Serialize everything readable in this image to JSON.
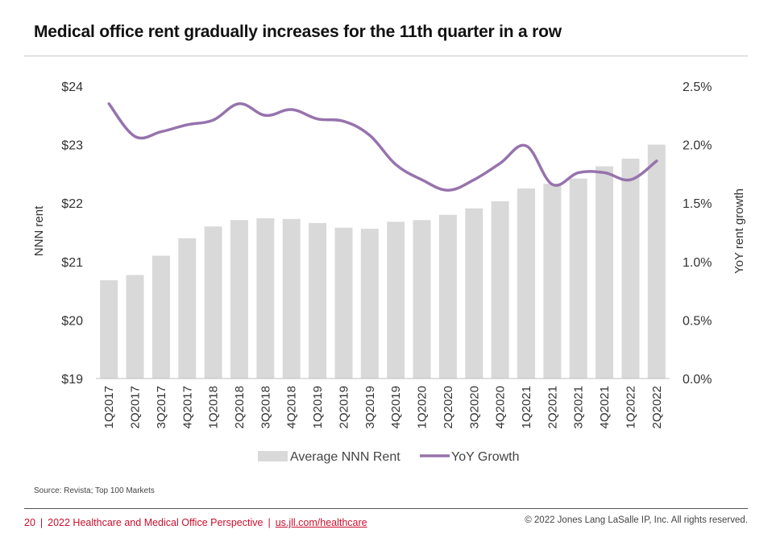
{
  "title": "Medical office rent gradually increases for the 11th quarter in a row",
  "source": "Source: Revista; Top 100 Markets",
  "footer": {
    "page_number": "20",
    "divider": "|",
    "publication": "2022 Healthcare and Medical Office Perspective",
    "link": "us.jll.com/healthcare",
    "copyright": "© 2022 Jones Lang LaSalle IP, Inc. All rights reserved."
  },
  "colors": {
    "bar": "#d9d9d9",
    "line": "#9673ad",
    "accent": "#c8102e"
  },
  "chart_data": {
    "type": "bar",
    "title": "Medical office rent gradually increases for the 11th quarter in a row",
    "categories": [
      "1Q2017",
      "2Q2017",
      "3Q2017",
      "4Q2017",
      "1Q2018",
      "2Q2018",
      "3Q2018",
      "4Q2018",
      "1Q2019",
      "2Q2019",
      "3Q2019",
      "4Q2019",
      "1Q2020",
      "2Q2020",
      "3Q2020",
      "4Q2020",
      "1Q2021",
      "2Q2021",
      "3Q2021",
      "4Q2021",
      "1Q2022",
      "2Q2022"
    ],
    "ylabel": "NNN rent",
    "ylim": [
      19,
      24
    ],
    "yticks": [
      "$24",
      "$23",
      "$22",
      "$21",
      "$20",
      "$19"
    ],
    "y2label": "YoY rent growth",
    "y2lim": [
      0,
      2.5
    ],
    "y2ticks": [
      "2.5%",
      "2.0%",
      "1.5%",
      "1.0%",
      "0.5%",
      "0.0%"
    ],
    "legend_position": "bottom",
    "grid": false,
    "series": [
      {
        "name": "Average NNN Rent",
        "type": "bar",
        "axis": "left",
        "values": [
          20.68,
          20.77,
          21.1,
          21.4,
          21.6,
          21.71,
          21.74,
          21.73,
          21.66,
          21.58,
          21.56,
          21.68,
          21.71,
          21.8,
          21.91,
          22.03,
          22.25,
          22.33,
          22.42,
          22.63,
          22.76,
          23.0
        ]
      },
      {
        "name": "YoY Growth",
        "type": "line",
        "axis": "right",
        "values": [
          2.35,
          2.07,
          2.11,
          2.17,
          2.21,
          2.35,
          2.25,
          2.3,
          2.22,
          2.2,
          2.08,
          1.83,
          1.7,
          1.61,
          1.7,
          1.84,
          1.99,
          1.66,
          1.76,
          1.76,
          1.7,
          1.86
        ]
      }
    ]
  }
}
